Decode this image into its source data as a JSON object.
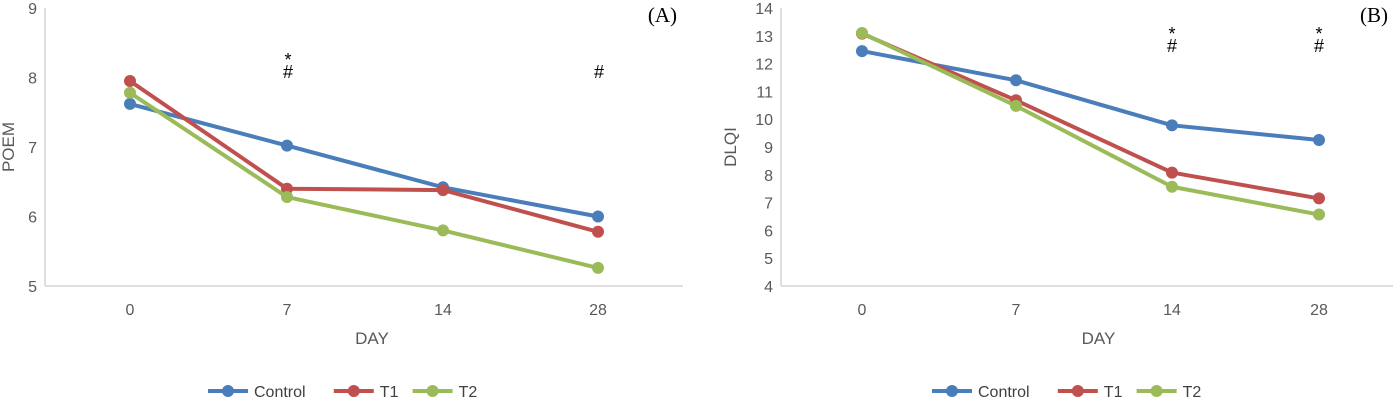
{
  "colors": {
    "Control": "#4a7ebb",
    "T1": "#c0504d",
    "T2": "#9bbb59",
    "axis": "#bfbfbf",
    "text": "#595959"
  },
  "chart_data": [
    {
      "type": "line",
      "panel_label": "(A)",
      "xlabel": "DAY",
      "ylabel": "POEM",
      "categories": [
        "0",
        "7",
        "14",
        "28"
      ],
      "ylim": [
        5,
        9
      ],
      "yticks": [
        5,
        6,
        7,
        8,
        9
      ],
      "grid": false,
      "legend": "bottom",
      "series": [
        {
          "name": "Control",
          "values": [
            7.62,
            7.02,
            6.42,
            6.0
          ]
        },
        {
          "name": "T1",
          "values": [
            7.95,
            6.4,
            6.38,
            5.78
          ]
        },
        {
          "name": "T2",
          "values": [
            7.78,
            6.28,
            5.8,
            5.26
          ]
        }
      ],
      "annotations": [
        {
          "category": "7",
          "lines": [
            "*",
            "#"
          ]
        },
        {
          "category": "28",
          "lines": [
            "#"
          ]
        }
      ]
    },
    {
      "type": "line",
      "panel_label": "(B)",
      "xlabel": "DAY",
      "ylabel": "DLQI",
      "categories": [
        "0",
        "7",
        "14",
        "28"
      ],
      "ylim": [
        4,
        14
      ],
      "yticks": [
        4,
        5,
        6,
        7,
        8,
        9,
        10,
        11,
        12,
        13,
        14
      ],
      "grid": false,
      "legend": "bottom",
      "series": [
        {
          "name": "Control",
          "values": [
            12.45,
            11.4,
            9.78,
            9.25
          ]
        },
        {
          "name": "T1",
          "values": [
            13.08,
            10.68,
            8.08,
            7.15
          ]
        },
        {
          "name": "T2",
          "values": [
            13.1,
            10.48,
            7.57,
            6.57
          ]
        }
      ],
      "annotations": [
        {
          "category": "14",
          "lines": [
            "*",
            "#"
          ]
        },
        {
          "category": "28",
          "lines": [
            "*",
            "#"
          ]
        }
      ]
    }
  ]
}
